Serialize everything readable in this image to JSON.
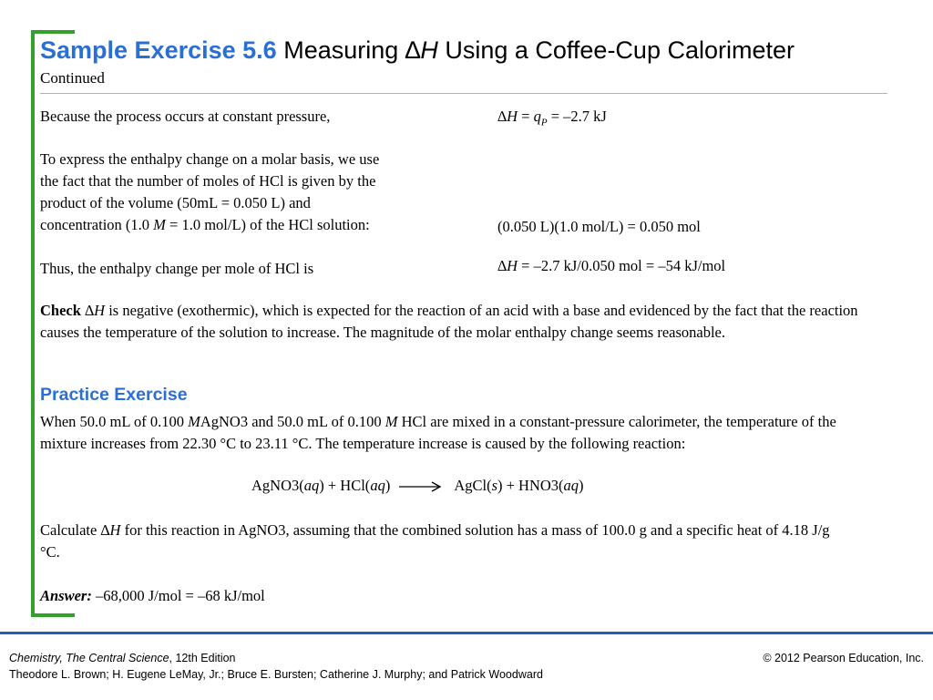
{
  "header": {
    "exercise_number": "Sample Exercise 5.6",
    "title_measuring": "Measuring",
    "title_delta": "∆",
    "title_H": "H",
    "title_rest": "Using a Coffee-Cup Calorimeter",
    "subtitle": "Continued"
  },
  "solution": {
    "line1_text": "Because the process occurs at constant pressure,",
    "line1_eq": {
      "delta": "∆",
      "H": "H",
      "eq1": " = ",
      "q": "q",
      "sub": "P",
      "eq2": " = –2.7 kJ"
    },
    "molar_text_lines": [
      "To express the enthalpy change on a molar basis, we use",
      "the fact that the number of moles of HCl is given by the",
      "product of the volume (50mL = 0.050 L) and"
    ],
    "molar_last_pre": "concentration (1.0 ",
    "molar_last_M": "M",
    "molar_last_post": " = 1.0 mol/L) of the HCl solution:",
    "moles_eq": "(0.050 L)(1.0 mol/L) = 0.050 mol",
    "thus_text": "Thus, the enthalpy change per mole of HCl is",
    "thus_eq": {
      "delta": "∆",
      "H": "H",
      "rest": " = –2.7 kJ/0.050 mol = –54 kJ/mol"
    }
  },
  "check": {
    "label": "Check",
    "delta": "∆",
    "H": "H",
    "text": " is negative (exothermic), which is expected for the reaction of an acid with a base and evidenced by the fact that the reaction causes the temperature of the solution to increase. The magnitude of the molar enthalpy change seems reasonable."
  },
  "practice": {
    "heading": "Practice Exercise",
    "para1": {
      "a": "When 50.0 mL of 0.100 ",
      "M1": "M",
      "b": "AgNO3 and 50.0 mL of 0.100 ",
      "M2": "M",
      "c": " HCl are mixed in a constant-pressure calorimeter, the temperature of the mixture increases from 22.30 °C to 23.11 °C. The temperature increase is caused by the following reaction:"
    },
    "reaction": {
      "r1": "AgNO3(",
      "aq1": "aq",
      "r2": ") + HCl(",
      "aq2": "aq",
      "r3": ")",
      "p1": "AgCl(",
      "s": "s",
      "p2": ") + HNO3(",
      "aq3": "aq",
      "p3": ")"
    },
    "para2": {
      "a": "Calculate ∆",
      "H": "H",
      "b": " for this reaction in AgNO3, assuming that the combined solution has a mass of 100.0 g and a specific heat of 4.18 J/g °C."
    },
    "answer_label": "Answer:",
    "answer_value": " –68,000 J/mol = –68 kJ/mol"
  },
  "footer": {
    "book_title": "Chemistry, The Central Science",
    "edition": ", 12th Edition",
    "authors": "Theodore L. Brown; H. Eugene LeMay, Jr.; Bruce E. Bursten; Catherine J. Murphy; and Patrick Woodward",
    "copyright": "© 2012 Pearson Education, Inc."
  },
  "colors": {
    "accent_blue": "#2a6fd6",
    "bracket_green": "#33a02c",
    "footer_rule": "#1f5fb8"
  }
}
